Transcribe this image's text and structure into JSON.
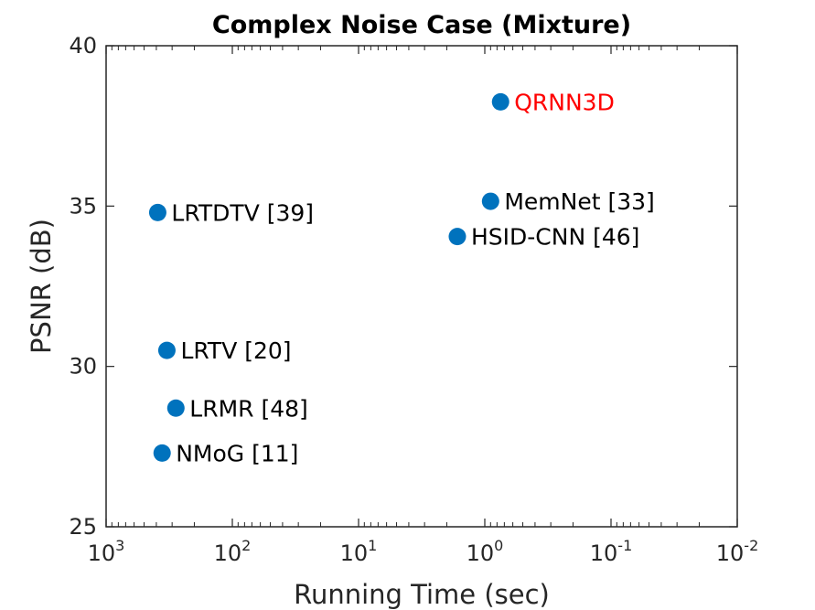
{
  "chart_data": {
    "type": "scatter",
    "title": "Complex Noise Case (Mixture)",
    "xlabel": "Running Time (sec)",
    "ylabel": "PSNR (dB)",
    "x_scale": "log",
    "x_reversed": true,
    "xlim": [
      1000,
      0.01
    ],
    "ylim": [
      25,
      40
    ],
    "x_ticks": [
      {
        "base": "10",
        "exp": "3",
        "value": 1000
      },
      {
        "base": "10",
        "exp": "2",
        "value": 100
      },
      {
        "base": "10",
        "exp": "1",
        "value": 10
      },
      {
        "base": "10",
        "exp": "0",
        "value": 1
      },
      {
        "base": "10",
        "exp": "-1",
        "value": 0.1
      },
      {
        "base": "10",
        "exp": "-2",
        "value": 0.01
      }
    ],
    "y_ticks": [
      {
        "label": "25",
        "value": 25
      },
      {
        "label": "30",
        "value": 30
      },
      {
        "label": "35",
        "value": 35
      },
      {
        "label": "40",
        "value": 40
      }
    ],
    "grid": false,
    "marker_color": "#0072BD",
    "points": [
      {
        "label": "QRNN3D",
        "x": 0.75,
        "y": 38.25,
        "label_color": "#FF0000"
      },
      {
        "label": "MemNet [33]",
        "x": 0.9,
        "y": 35.15,
        "label_color": "#000000"
      },
      {
        "label": "LRTDTV [39]",
        "x": 390,
        "y": 34.8,
        "label_color": "#000000"
      },
      {
        "label": "HSID-CNN [46]",
        "x": 1.65,
        "y": 34.05,
        "label_color": "#000000"
      },
      {
        "label": "LRTV [20]",
        "x": 330,
        "y": 30.5,
        "label_color": "#000000"
      },
      {
        "label": "LRMR [48]",
        "x": 280,
        "y": 28.7,
        "label_color": "#000000"
      },
      {
        "label": "NMoG [11]",
        "x": 360,
        "y": 27.3,
        "label_color": "#000000"
      }
    ]
  }
}
